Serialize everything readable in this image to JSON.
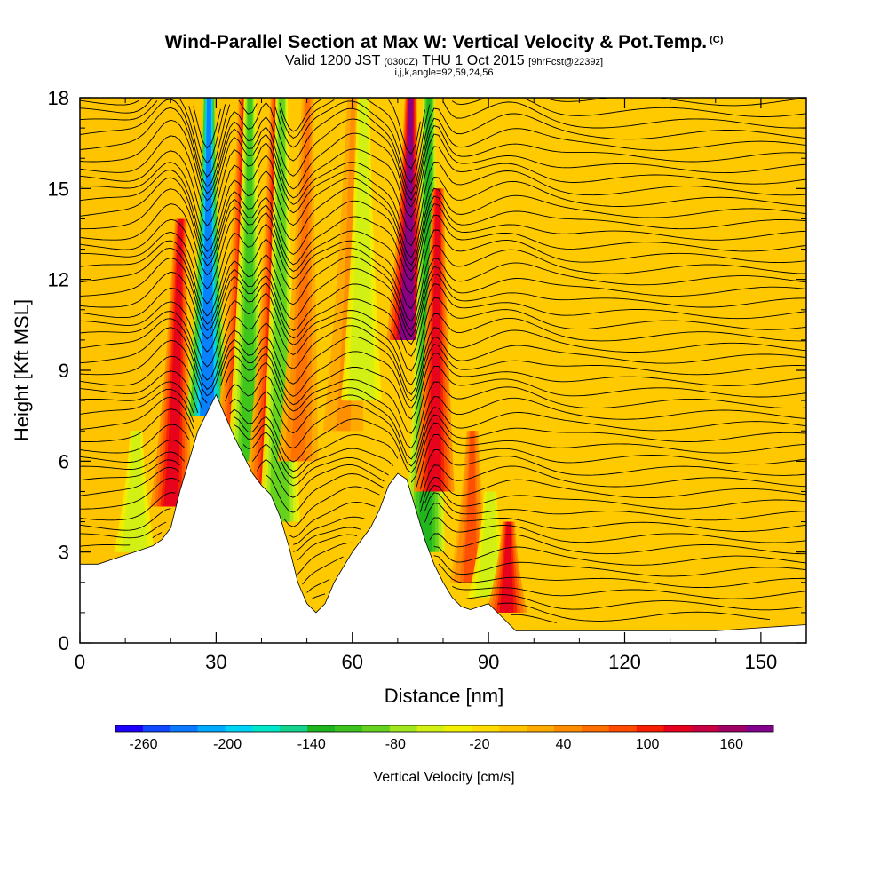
{
  "header": {
    "title": "Wind-Parallel Section at Max W: Vertical Velocity & Pot.Temp.",
    "copyright": "(C)",
    "valid_prefix": "Valid 1200 JST",
    "valid_zulu": "(0300Z)",
    "valid_date": "THU 1 Oct 2015",
    "forecast": "[9hrFcst@2239z]",
    "indices": "i,j,k,angle=92,59,24,56"
  },
  "chart_data": {
    "type": "heatmap",
    "xlabel": "Distance [nm]",
    "ylabel": "Height [Kft MSL]",
    "xlim": [
      0,
      160
    ],
    "ylim": [
      0,
      18
    ],
    "xticks": [
      "0",
      "30",
      "60",
      "90",
      "120",
      "150"
    ],
    "yticks": [
      "0",
      "3",
      "6",
      "9",
      "12",
      "15",
      "18"
    ],
    "colorbar": {
      "label": "Vertical Velocity [cm/s]",
      "ticks": [
        "-260",
        "-200",
        "-140",
        "-80",
        "-20",
        "40",
        "100",
        "160"
      ],
      "min": -280,
      "max": 190,
      "step": 20,
      "colors": [
        "#1e00ff",
        "#0f46ff",
        "#0a78ff",
        "#00aaff",
        "#00d2f5",
        "#00e6c8",
        "#14d28c",
        "#1eb41e",
        "#3cc31e",
        "#64d21e",
        "#a0e61e",
        "#d2f014",
        "#f0f000",
        "#ffdc00",
        "#ffc300",
        "#ffaa00",
        "#ff8c00",
        "#ff6e00",
        "#ff4b00",
        "#f51e00",
        "#e6001e",
        "#c80041",
        "#a00064",
        "#82008c"
      ]
    },
    "terrain_profile": {
      "distance_nm": [
        0,
        4,
        8,
        12,
        16,
        18,
        20,
        22,
        24,
        26,
        28,
        30,
        32,
        34,
        36,
        38,
        40,
        42,
        44,
        46,
        48,
        50,
        52,
        54,
        56,
        58,
        60,
        62,
        64,
        66,
        68,
        70,
        72,
        74,
        76,
        78,
        80,
        82,
        84,
        86,
        88,
        90,
        92,
        94,
        96,
        100,
        110,
        120,
        130,
        140,
        150,
        160
      ],
      "height_kft": [
        2.6,
        2.6,
        2.8,
        3,
        3.2,
        3.4,
        3.8,
        5,
        6,
        7,
        7.6,
        8.2,
        7.5,
        6.8,
        6.2,
        5.6,
        5.2,
        4.9,
        4.2,
        3.2,
        2,
        1.3,
        1,
        1.3,
        2,
        2.5,
        3,
        3.4,
        3.8,
        4.4,
        5.2,
        5.6,
        5.4,
        4.4,
        3.4,
        2.6,
        2,
        1.5,
        1.2,
        1.1,
        1.2,
        1.3,
        1,
        0.7,
        0.4,
        0.4,
        0.4,
        0.4,
        0.4,
        0.4,
        0.5,
        0.6
      ]
    },
    "velocity_features": [
      {
        "center_nm": 12,
        "bottom_kft": 3,
        "top_kft": 7,
        "velocity_cms": -60
      },
      {
        "center_nm": 20,
        "bottom_kft": 4.5,
        "top_kft": 14,
        "velocity_cms": 120
      },
      {
        "center_nm": 28,
        "bottom_kft": 7.5,
        "top_kft": 18,
        "velocity_cms": -240
      },
      {
        "center_nm": 34,
        "bottom_kft": 6,
        "top_kft": 18,
        "velocity_cms": 110
      },
      {
        "center_nm": 37,
        "bottom_kft": 6,
        "top_kft": 18,
        "velocity_cms": -110
      },
      {
        "center_nm": 41,
        "bottom_kft": 5,
        "top_kft": 18,
        "velocity_cms": 100
      },
      {
        "center_nm": 44,
        "bottom_kft": 4,
        "top_kft": 18,
        "velocity_cms": -100
      },
      {
        "center_nm": 48,
        "bottom_kft": 6,
        "top_kft": 18,
        "velocity_cms": 60
      },
      {
        "center_nm": 58,
        "bottom_kft": 7,
        "top_kft": 18,
        "velocity_cms": 40
      },
      {
        "center_nm": 62,
        "bottom_kft": 8,
        "top_kft": 18,
        "velocity_cms": -60
      },
      {
        "center_nm": 72,
        "bottom_kft": 10,
        "top_kft": 18,
        "velocity_cms": 180
      },
      {
        "center_nm": 76,
        "bottom_kft": 3,
        "top_kft": 18,
        "velocity_cms": -140
      },
      {
        "center_nm": 78,
        "bottom_kft": 5,
        "top_kft": 15,
        "velocity_cms": 120
      },
      {
        "center_nm": 86,
        "bottom_kft": 2,
        "top_kft": 7,
        "velocity_cms": 80
      },
      {
        "center_nm": 90,
        "bottom_kft": 1.5,
        "top_kft": 5,
        "velocity_cms": -60
      },
      {
        "center_nm": 94,
        "bottom_kft": 1,
        "top_kft": 4,
        "velocity_cms": 120
      }
    ]
  }
}
